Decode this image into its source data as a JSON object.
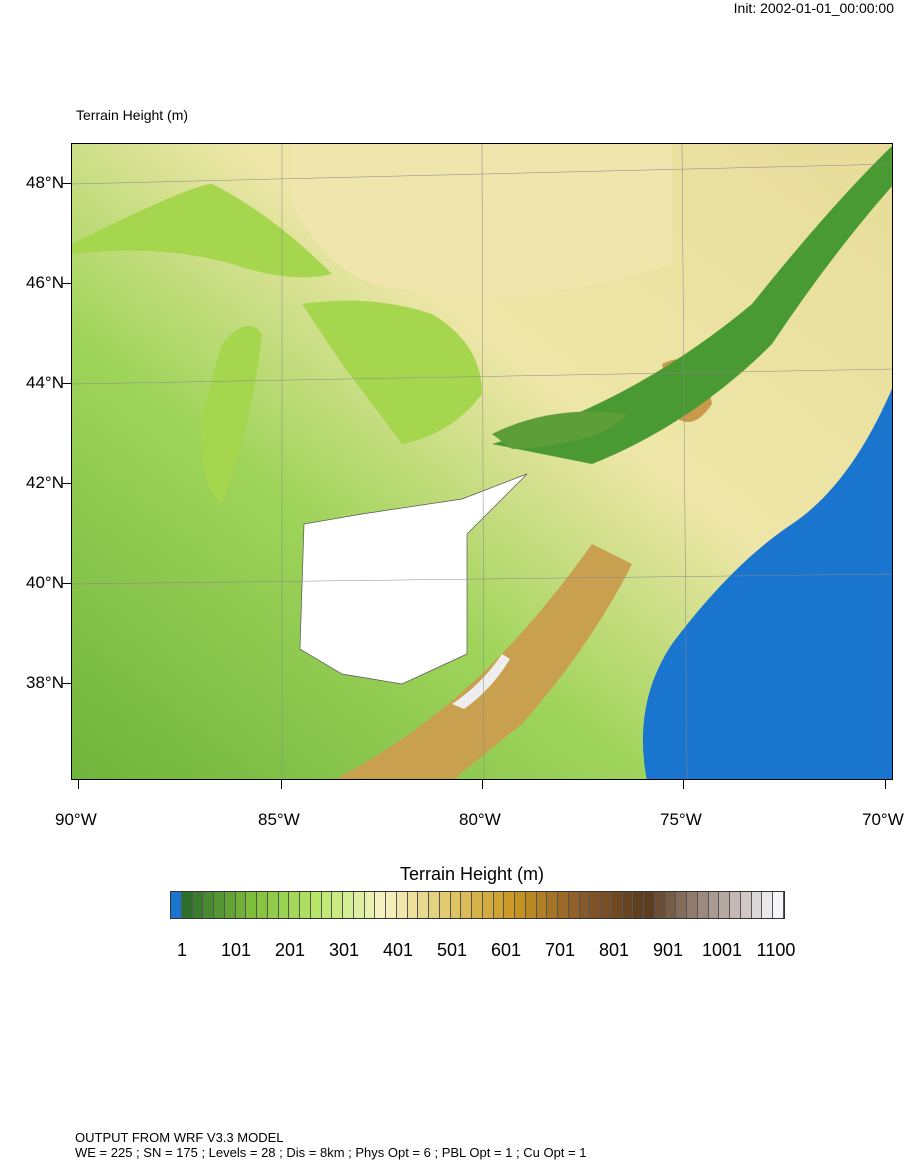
{
  "init_label": "Init: 2002-01-01_00:00:00",
  "map_title": "Terrain Height   (m)",
  "lat_labels": [
    "48°N",
    "46°N",
    "44°N",
    "42°N",
    "40°N",
    "38°N"
  ],
  "lon_labels": [
    "90°W",
    "85°W",
    "80°W",
    "75°W",
    "70°W"
  ],
  "colorbar": {
    "title": "Terrain Height  (m)",
    "labels": [
      "1",
      "101",
      "201",
      "301",
      "401",
      "501",
      "601",
      "701",
      "801",
      "901",
      "1001",
      "1100"
    ],
    "below_color": "#1a75cf",
    "colormap_stops": [
      "#2e6e2a",
      "#7fbf3a",
      "#b8e86a",
      "#f7f3c4",
      "#e0c86a",
      "#c9961e",
      "#8a5a2a",
      "#5a3a1e",
      "#a89890",
      "#f6f6fa"
    ]
  },
  "map_colors": {
    "ocean": "#1a75cf",
    "lakes": "#a5d64e",
    "lowland": "#8ccc48",
    "upland": "#f2e9b0",
    "mountain": "#b48538",
    "masked": "#ffffff"
  },
  "footer": {
    "line1": "OUTPUT FROM WRF V3.3 MODEL",
    "line2": "WE = 225 ; SN = 175 ; Levels = 28 ; Dis = 8km ; Phys Opt = 6 ; PBL Opt = 1 ; Cu Opt = 1"
  }
}
